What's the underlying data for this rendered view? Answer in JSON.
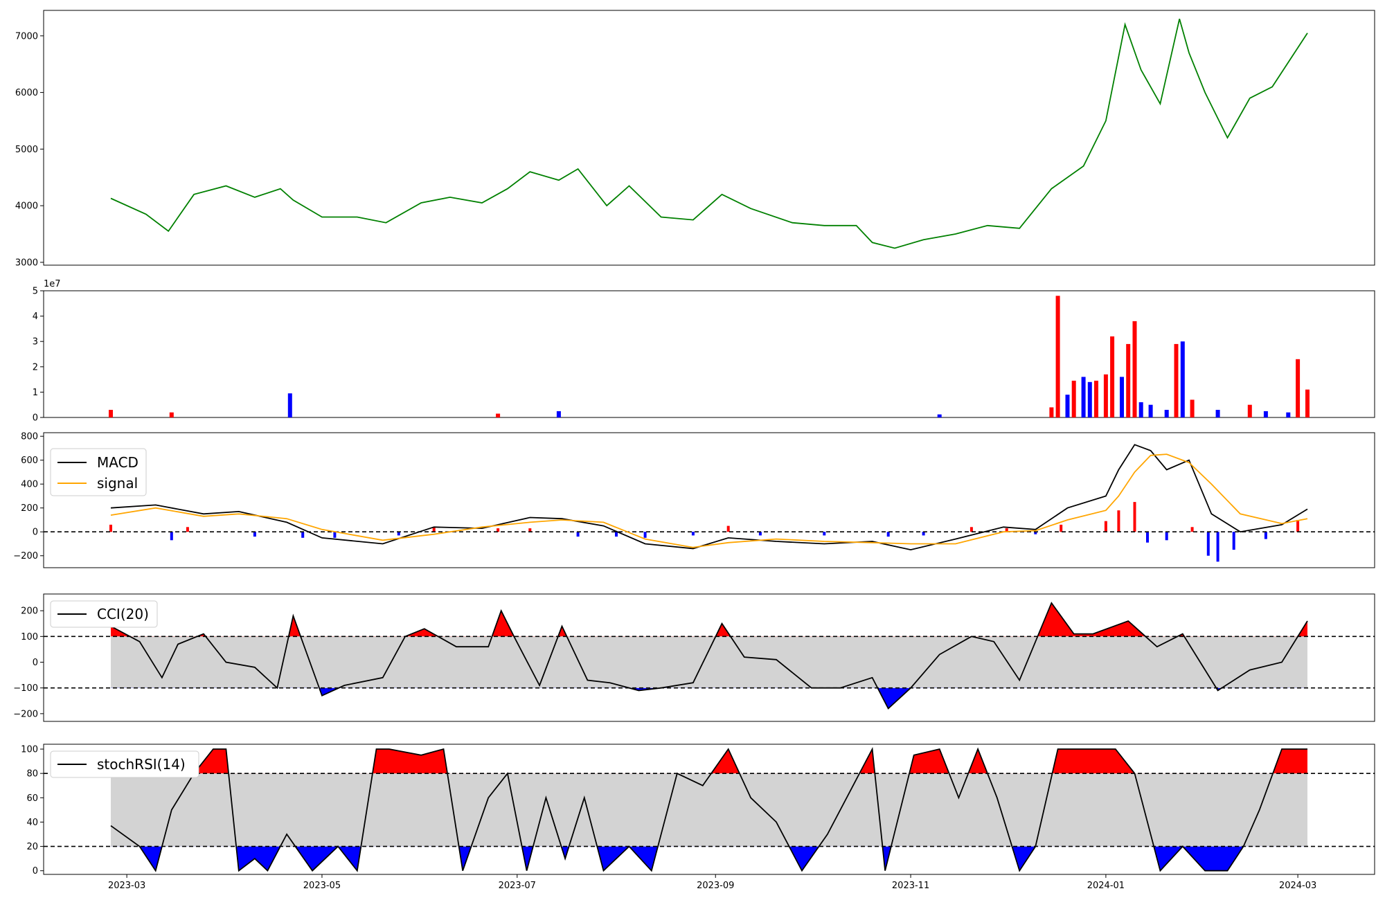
{
  "chart_data": [
    {
      "type": "line",
      "name": "price",
      "color": "#008000",
      "ylim": [
        2950,
        7450
      ],
      "yticks": [
        3000,
        4000,
        5000,
        6000,
        7000
      ],
      "x": [
        "2023-02-24",
        "2023-03-07",
        "2023-03-14",
        "2023-03-22",
        "2023-04-01",
        "2023-04-10",
        "2023-04-18",
        "2023-04-22",
        "2023-05-01",
        "2023-05-12",
        "2023-05-21",
        "2023-06-01",
        "2023-06-10",
        "2023-06-20",
        "2023-06-28",
        "2023-07-05",
        "2023-07-14",
        "2023-07-20",
        "2023-07-29",
        "2023-08-05",
        "2023-08-15",
        "2023-08-25",
        "2023-09-03",
        "2023-09-12",
        "2023-09-25",
        "2023-10-05",
        "2023-10-15",
        "2023-10-20",
        "2023-10-27",
        "2023-11-05",
        "2023-11-15",
        "2023-11-25",
        "2023-12-05",
        "2023-12-15",
        "2023-12-25",
        "2024-01-01",
        "2024-01-07",
        "2024-01-12",
        "2024-01-18",
        "2024-01-24",
        "2024-01-27",
        "2024-02-01",
        "2024-02-08",
        "2024-02-15",
        "2024-02-22",
        "2024-03-04"
      ],
      "y": [
        4130,
        3850,
        3550,
        4200,
        4350,
        4150,
        4300,
        4100,
        3800,
        3800,
        3700,
        4050,
        4150,
        4050,
        4300,
        4600,
        4450,
        4650,
        4000,
        4350,
        3800,
        3750,
        4200,
        3950,
        3700,
        3650,
        3650,
        3350,
        3250,
        3400,
        3500,
        3650,
        3600,
        4300,
        4700,
        5500,
        7200,
        6400,
        5800,
        7300,
        6700,
        6000,
        5200,
        5900,
        6100,
        7050
      ]
    },
    {
      "type": "bar",
      "name": "volume",
      "ylim": [
        0,
        50000000
      ],
      "yticks": [
        0,
        10000000,
        20000000,
        30000000,
        40000000,
        50000000
      ],
      "ytick_labels": [
        "0",
        "1",
        "2",
        "3",
        "4",
        "5"
      ],
      "offset_label": "1e7",
      "up_color": "#ff0000",
      "down_color": "#0000ff",
      "x": [
        "2023-02-24",
        "2023-03-15",
        "2023-04-21",
        "2023-06-25",
        "2023-07-14",
        "2023-11-10",
        "2023-12-15",
        "2023-12-17",
        "2023-12-20",
        "2023-12-22",
        "2023-12-25",
        "2023-12-27",
        "2023-12-29",
        "2024-01-01",
        "2024-01-03",
        "2024-01-06",
        "2024-01-08",
        "2024-01-10",
        "2024-01-12",
        "2024-01-15",
        "2024-01-20",
        "2024-01-23",
        "2024-01-25",
        "2024-01-28",
        "2024-02-05",
        "2024-02-15",
        "2024-02-20",
        "2024-02-27",
        "2024-03-01",
        "2024-03-04"
      ],
      "values": [
        3000000,
        2000000,
        9500000,
        1500000,
        2500000,
        1200000,
        4000000,
        48000000,
        9000000,
        14500000,
        16000000,
        14000000,
        14500000,
        17000000,
        32000000,
        16000000,
        29000000,
        38000000,
        6000000,
        5000000,
        3000000,
        29000000,
        30000000,
        7000000,
        3000000,
        5000000,
        2500000,
        2000000,
        23000000,
        11000000
      ],
      "up": [
        true,
        true,
        false,
        true,
        false,
        false,
        true,
        true,
        false,
        true,
        false,
        false,
        true,
        true,
        true,
        false,
        true,
        true,
        false,
        false,
        false,
        true,
        false,
        true,
        false,
        true,
        false,
        false,
        true,
        true
      ]
    },
    {
      "type": "line",
      "name": "macd",
      "ylim": [
        -300,
        830
      ],
      "yticks": [
        -200,
        0,
        200,
        400,
        600,
        800
      ],
      "zero_line": 0,
      "series": [
        {
          "name": "MACD",
          "color": "#000000",
          "x": [
            "2023-02-24",
            "2023-03-10",
            "2023-03-25",
            "2023-04-05",
            "2023-04-20",
            "2023-05-01",
            "2023-05-20",
            "2023-06-05",
            "2023-06-20",
            "2023-07-05",
            "2023-07-15",
            "2023-07-28",
            "2023-08-10",
            "2023-08-25",
            "2023-09-05",
            "2023-09-20",
            "2023-10-05",
            "2023-10-20",
            "2023-11-01",
            "2023-11-15",
            "2023-11-30",
            "2023-12-10",
            "2023-12-20",
            "2024-01-01",
            "2024-01-05",
            "2024-01-10",
            "2024-01-15",
            "2024-01-20",
            "2024-01-27",
            "2024-02-03",
            "2024-02-12",
            "2024-02-25",
            "2024-03-04"
          ],
          "y": [
            200,
            225,
            150,
            170,
            80,
            -50,
            -100,
            40,
            30,
            120,
            110,
            50,
            -100,
            -140,
            -50,
            -80,
            -100,
            -80,
            -150,
            -60,
            40,
            20,
            200,
            300,
            520,
            730,
            680,
            520,
            600,
            150,
            0,
            60,
            190
          ]
        },
        {
          "name": "signal",
          "color": "#ffa500",
          "x": [
            "2023-02-24",
            "2023-03-10",
            "2023-03-25",
            "2023-04-05",
            "2023-04-20",
            "2023-05-01",
            "2023-05-20",
            "2023-06-05",
            "2023-06-20",
            "2023-07-05",
            "2023-07-15",
            "2023-07-28",
            "2023-08-10",
            "2023-08-25",
            "2023-09-05",
            "2023-09-20",
            "2023-10-05",
            "2023-10-20",
            "2023-11-01",
            "2023-11-15",
            "2023-11-30",
            "2023-12-10",
            "2023-12-20",
            "2024-01-01",
            "2024-01-05",
            "2024-01-10",
            "2024-01-15",
            "2024-01-20",
            "2024-01-27",
            "2024-02-03",
            "2024-02-12",
            "2024-02-25",
            "2024-03-04"
          ],
          "y": [
            140,
            200,
            130,
            150,
            110,
            20,
            -70,
            -20,
            40,
            80,
            100,
            80,
            -60,
            -130,
            -90,
            -60,
            -80,
            -90,
            -100,
            -100,
            0,
            10,
            100,
            180,
            300,
            500,
            640,
            650,
            580,
            400,
            150,
            70,
            110
          ]
        }
      ],
      "hist": {
        "pos_color": "#ff0000",
        "neg_color": "#0000ff",
        "x": [
          "2023-02-24",
          "2023-03-15",
          "2023-03-20",
          "2023-04-10",
          "2023-04-25",
          "2023-05-05",
          "2023-05-25",
          "2023-06-05",
          "2023-06-25",
          "2023-07-05",
          "2023-07-20",
          "2023-08-01",
          "2023-08-10",
          "2023-08-25",
          "2023-09-05",
          "2023-09-15",
          "2023-10-05",
          "2023-10-25",
          "2023-11-05",
          "2023-11-20",
          "2023-12-01",
          "2023-12-10",
          "2023-12-18",
          "2024-01-01",
          "2024-01-05",
          "2024-01-10",
          "2024-01-14",
          "2024-01-20",
          "2024-01-28",
          "2024-02-02",
          "2024-02-05",
          "2024-02-10",
          "2024-02-20",
          "2024-03-01"
        ],
        "values": [
          60,
          -70,
          40,
          -40,
          -50,
          -50,
          -30,
          40,
          30,
          30,
          -40,
          -40,
          -50,
          -30,
          50,
          -30,
          -30,
          -40,
          -30,
          40,
          30,
          -20,
          60,
          90,
          180,
          250,
          -90,
          -70,
          40,
          -200,
          -250,
          -150,
          -60,
          100
        ]
      },
      "legend": [
        "MACD",
        "signal"
      ],
      "legend_loc": "upper-left"
    },
    {
      "type": "area",
      "name": "cci",
      "ylim": [
        -230,
        265
      ],
      "yticks": [
        -200,
        -100,
        0,
        100,
        200
      ],
      "bands": [
        -100,
        100
      ],
      "color": "#000000",
      "over_color": "#ff0000",
      "under_color": "#0000ff",
      "band_fill": "#d3d3d3",
      "x": [
        "2023-02-24",
        "2023-03-05",
        "2023-03-12",
        "2023-03-17",
        "2023-03-25",
        "2023-04-01",
        "2023-04-10",
        "2023-04-17",
        "2023-04-22",
        "2023-05-01",
        "2023-05-08",
        "2023-05-20",
        "2023-05-27",
        "2023-06-02",
        "2023-06-12",
        "2023-06-22",
        "2023-06-26",
        "2023-06-30",
        "2023-07-08",
        "2023-07-15",
        "2023-07-23",
        "2023-07-30",
        "2023-08-08",
        "2023-08-15",
        "2023-08-25",
        "2023-09-03",
        "2023-09-10",
        "2023-09-20",
        "2023-10-01",
        "2023-10-10",
        "2023-10-20",
        "2023-10-25",
        "2023-11-01",
        "2023-11-10",
        "2023-11-20",
        "2023-11-27",
        "2023-12-05",
        "2023-12-15",
        "2023-12-22",
        "2023-12-28",
        "2024-01-08",
        "2024-01-17",
        "2024-01-25",
        "2024-02-05",
        "2024-02-15",
        "2024-02-25",
        "2024-03-04"
      ],
      "y": [
        140,
        80,
        -60,
        70,
        110,
        0,
        -20,
        -100,
        180,
        -130,
        -90,
        -60,
        100,
        130,
        60,
        60,
        200,
        100,
        -90,
        140,
        -70,
        -80,
        -110,
        -100,
        -80,
        150,
        20,
        10,
        -100,
        -100,
        -60,
        -180,
        -100,
        30,
        100,
        80,
        -70,
        230,
        110,
        110,
        160,
        60,
        110,
        -110,
        -30,
        0,
        160
      ]
    },
    {
      "type": "area",
      "name": "stochrsi",
      "ylim": [
        -3,
        104
      ],
      "yticks": [
        0,
        20,
        40,
        60,
        80,
        100
      ],
      "bands": [
        20,
        80
      ],
      "color": "#000000",
      "over_color": "#ff0000",
      "under_color": "#0000ff",
      "band_fill": "#d3d3d3",
      "x": [
        "2023-02-24",
        "2023-03-05",
        "2023-03-10",
        "2023-03-15",
        "2023-03-22",
        "2023-03-28",
        "2023-04-01",
        "2023-04-05",
        "2023-04-10",
        "2023-04-14",
        "2023-04-20",
        "2023-04-28",
        "2023-05-06",
        "2023-05-12",
        "2023-05-18",
        "2023-05-22",
        "2023-06-01",
        "2023-06-08",
        "2023-06-14",
        "2023-06-22",
        "2023-06-28",
        "2023-07-04",
        "2023-07-10",
        "2023-07-16",
        "2023-07-22",
        "2023-07-28",
        "2023-08-05",
        "2023-08-12",
        "2023-08-20",
        "2023-08-28",
        "2023-09-05",
        "2023-09-12",
        "2023-09-20",
        "2023-09-28",
        "2023-10-06",
        "2023-10-14",
        "2023-10-20",
        "2023-10-24",
        "2023-11-02",
        "2023-11-10",
        "2023-11-16",
        "2023-11-22",
        "2023-11-28",
        "2023-12-05",
        "2023-12-10",
        "2023-12-17",
        "2023-12-25",
        "2024-01-04",
        "2024-01-10",
        "2024-01-18",
        "2024-01-25",
        "2024-02-01",
        "2024-02-08",
        "2024-02-13",
        "2024-02-18",
        "2024-02-25",
        "2024-03-04"
      ],
      "y": [
        37,
        20,
        0,
        50,
        80,
        100,
        100,
        0,
        10,
        0,
        30,
        0,
        20,
        0,
        100,
        100,
        95,
        100,
        0,
        60,
        80,
        0,
        60,
        10,
        60,
        0,
        20,
        0,
        80,
        70,
        100,
        60,
        40,
        0,
        30,
        70,
        100,
        0,
        95,
        100,
        60,
        100,
        60,
        0,
        20,
        100,
        100,
        100,
        80,
        0,
        20,
        0,
        0,
        20,
        50,
        100,
        100
      ]
    }
  ],
  "x_axis": {
    "tick_values": [
      "2023-03",
      "2023-05",
      "2023-07",
      "2023-09",
      "2023-11",
      "2024-01",
      "2024-03"
    ],
    "tick_labels": [
      "2023-03",
      "2023-05",
      "2023-07",
      "2023-09",
      "2023-11",
      "2024-01",
      "2024-03"
    ],
    "range": [
      "2023-02-03",
      "2024-03-25"
    ]
  }
}
